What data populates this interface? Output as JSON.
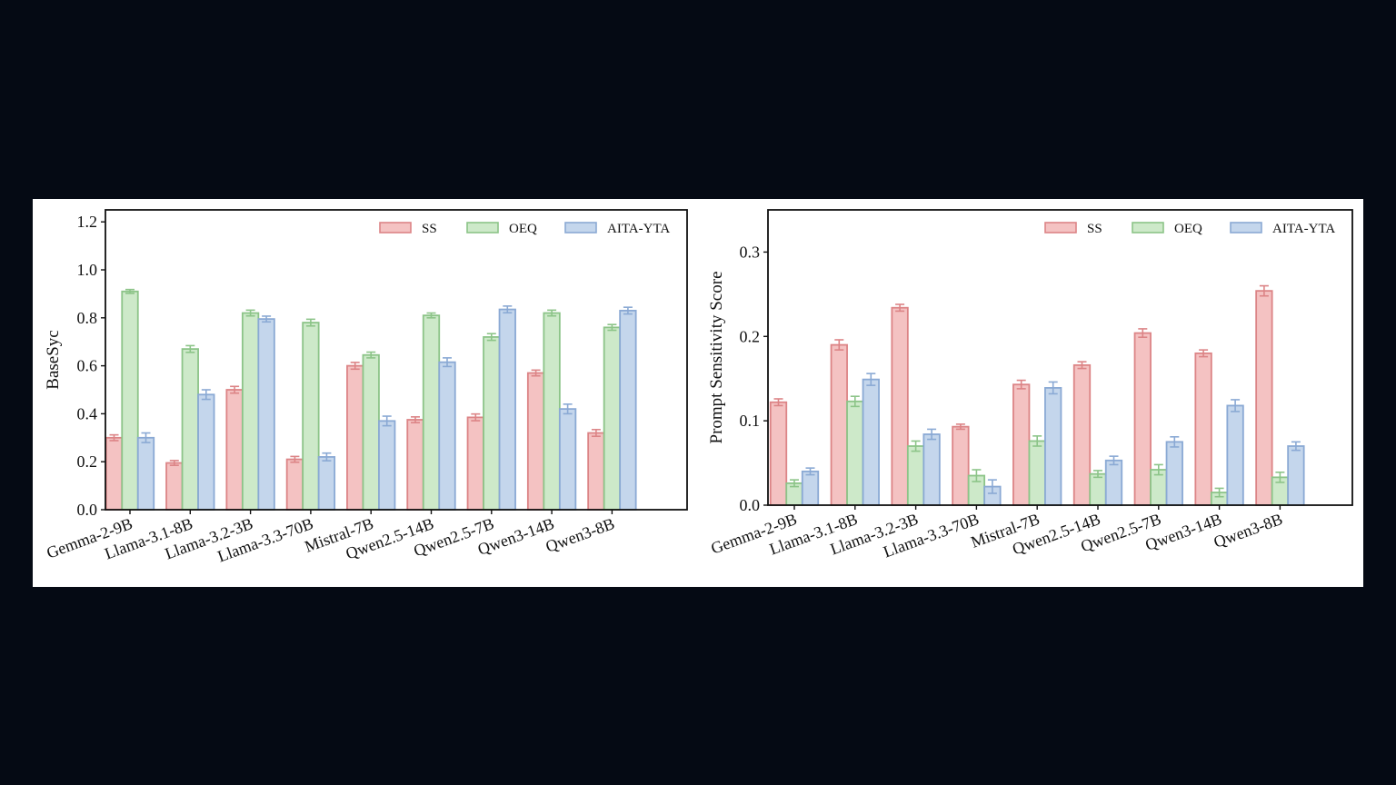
{
  "colors": {
    "SS": {
      "fill": "#f4c2c2",
      "stroke": "#dc8486"
    },
    "OEQ": {
      "fill": "#cde9c9",
      "stroke": "#8cc488"
    },
    "AITA-YTA": {
      "fill": "#c4d6ec",
      "stroke": "#8aa9d4"
    },
    "background": "#050a14",
    "panel": "#ffffff"
  },
  "chart_data": [
    {
      "type": "bar",
      "ylabel": "BaseSyc",
      "ylim": [
        0,
        1.25
      ],
      "yticks": [
        "0.0",
        "0.2",
        "0.4",
        "0.6",
        "0.8",
        "1.0",
        "1.2"
      ],
      "legend_position": "top-right",
      "grid": false,
      "categories": [
        "Gemma-2-9B",
        "Llama-3.1-8B",
        "Llama-3.2-3B",
        "Llama-3.3-70B",
        "Mistral-7B",
        "Qwen2.5-14B",
        "Qwen2.5-7B",
        "Qwen3-14B",
        "Qwen3-8B"
      ],
      "series": [
        {
          "name": "SS",
          "values": [
            0.3,
            0.195,
            0.5,
            0.21,
            0.6,
            0.375,
            0.385,
            0.57,
            0.32
          ],
          "errors": [
            0.012,
            0.01,
            0.014,
            0.012,
            0.014,
            0.012,
            0.014,
            0.012,
            0.014
          ]
        },
        {
          "name": "OEQ",
          "values": [
            0.91,
            0.67,
            0.82,
            0.78,
            0.645,
            0.81,
            0.72,
            0.82,
            0.76
          ],
          "errors": [
            0.008,
            0.014,
            0.012,
            0.014,
            0.012,
            0.01,
            0.014,
            0.012,
            0.012
          ]
        },
        {
          "name": "AITA-YTA",
          "values": [
            0.3,
            0.48,
            0.795,
            0.22,
            0.37,
            0.615,
            0.835,
            0.42,
            0.83
          ],
          "errors": [
            0.02,
            0.02,
            0.012,
            0.016,
            0.02,
            0.018,
            0.014,
            0.02,
            0.014
          ]
        }
      ]
    },
    {
      "type": "bar",
      "ylabel": "Prompt Sensitivity Score",
      "ylim": [
        0,
        0.35
      ],
      "yticks": [
        "0.0",
        "0.1",
        "0.2",
        "0.3"
      ],
      "legend_position": "top-right",
      "grid": false,
      "categories": [
        "Gemma-2-9B",
        "Llama-3.1-8B",
        "Llama-3.2-3B",
        "Llama-3.3-70B",
        "Mistral-7B",
        "Qwen2.5-14B",
        "Qwen2.5-7B",
        "Qwen3-14B",
        "Qwen3-8B"
      ],
      "series": [
        {
          "name": "SS",
          "values": [
            0.122,
            0.19,
            0.234,
            0.093,
            0.143,
            0.166,
            0.204,
            0.18,
            0.254
          ],
          "errors": [
            0.004,
            0.006,
            0.004,
            0.003,
            0.005,
            0.004,
            0.005,
            0.004,
            0.006
          ]
        },
        {
          "name": "OEQ",
          "values": [
            0.026,
            0.123,
            0.07,
            0.035,
            0.076,
            0.037,
            0.042,
            0.015,
            0.033
          ],
          "errors": [
            0.004,
            0.006,
            0.006,
            0.007,
            0.006,
            0.004,
            0.006,
            0.005,
            0.006
          ]
        },
        {
          "name": "AITA-YTA",
          "values": [
            0.04,
            0.149,
            0.084,
            0.022,
            0.139,
            0.053,
            0.075,
            0.118,
            0.07
          ],
          "errors": [
            0.004,
            0.007,
            0.006,
            0.008,
            0.007,
            0.005,
            0.006,
            0.007,
            0.005
          ]
        }
      ]
    }
  ]
}
